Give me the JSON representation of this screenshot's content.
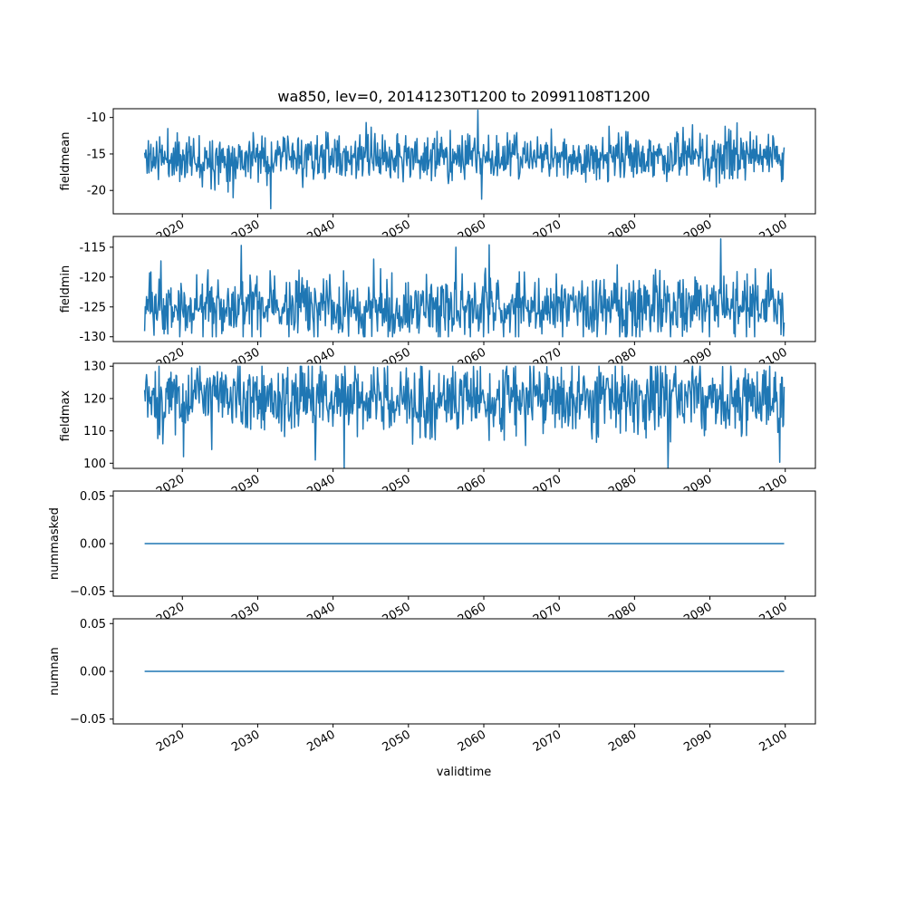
{
  "chart_data": {
    "type": "line",
    "title": "wa850, lev=0, 20141230T1200 to 20991108T1200",
    "xlabel": "validtime",
    "series_color": "#1f77b4",
    "x_range": [
      "2014-12-30",
      "2099-11-08"
    ],
    "xlim": [
      "2010-11-01",
      "2104-01-01"
    ],
    "x_ticks": [
      "2020",
      "2030",
      "2040",
      "2050",
      "2060",
      "2070",
      "2080",
      "2090",
      "2100"
    ],
    "grid": false,
    "panels": [
      {
        "ylabel": "fieldmean",
        "ylim": [
          -23.2,
          -8.8
        ],
        "y_ticks": [
          "-10",
          "-15",
          "-20"
        ],
        "y_tick_values": [
          -10,
          -15,
          -20
        ],
        "n_points": 1020,
        "mean": -15.5,
        "spread": 1.6,
        "min": -22.5,
        "max": -9.0,
        "extremes": [
          [
            "2031-10-01",
            -22.5
          ],
          [
            "2059-04-01",
            -9.0
          ],
          [
            "2026-10-01",
            -21.0
          ],
          [
            "2059-10-01",
            -21.2
          ],
          [
            "2044-06-01",
            -10.7
          ],
          [
            "2076-08-01",
            -11.2
          ],
          [
            "2087-09-01",
            -11.0
          ],
          [
            "2092-01-01",
            -11.2
          ]
        ],
        "seed": 11
      },
      {
        "ylabel": "fieldmin",
        "ylim": [
          -130.8,
          -113.2
        ],
        "y_ticks": [
          "-115",
          "-120",
          "-125",
          "-130"
        ],
        "y_tick_values": [
          -115,
          -120,
          -125,
          -130
        ],
        "n_points": 1020,
        "mean": -125.0,
        "spread": 2.6,
        "min": -130.0,
        "max": -113.6,
        "extremes": [
          [
            "2091-06-01",
            -113.6
          ],
          [
            "2027-11-01",
            -114.7
          ],
          [
            "2056-05-01",
            -115.0
          ],
          [
            "2060-10-01",
            -114.6
          ],
          [
            "2017-03-01",
            -117.3
          ],
          [
            "2045-06-01",
            -117.0
          ]
        ],
        "seed": 23
      },
      {
        "ylabel": "fieldmax",
        "ylim": [
          98.4,
          130.9
        ],
        "y_ticks": [
          "100",
          "110",
          "120",
          "130"
        ],
        "y_tick_values": [
          100,
          110,
          120,
          130
        ],
        "n_points": 1020,
        "mean": 120.0,
        "spread": 5.5,
        "min": 98.6,
        "max": 130.0,
        "extremes": [
          [
            "2041-07-01",
            98.6
          ],
          [
            "2084-06-01",
            98.6
          ],
          [
            "2099-04-01",
            100.3
          ],
          [
            "2020-03-01",
            102.0
          ],
          [
            "2037-09-01",
            101.0
          ]
        ],
        "seed": 37
      },
      {
        "ylabel": "nummasked",
        "ylim": [
          -0.055,
          0.055
        ],
        "y_ticks": [
          "0.05",
          "0.00",
          "−0.05"
        ],
        "y_tick_values": [
          0.05,
          0.0,
          -0.05
        ],
        "constant": 0.0
      },
      {
        "ylabel": "numnan",
        "ylim": [
          -0.055,
          0.055
        ],
        "y_ticks": [
          "0.05",
          "0.00",
          "−0.05"
        ],
        "y_tick_values": [
          0.05,
          0.0,
          -0.05
        ],
        "constant": 0.0
      }
    ]
  }
}
